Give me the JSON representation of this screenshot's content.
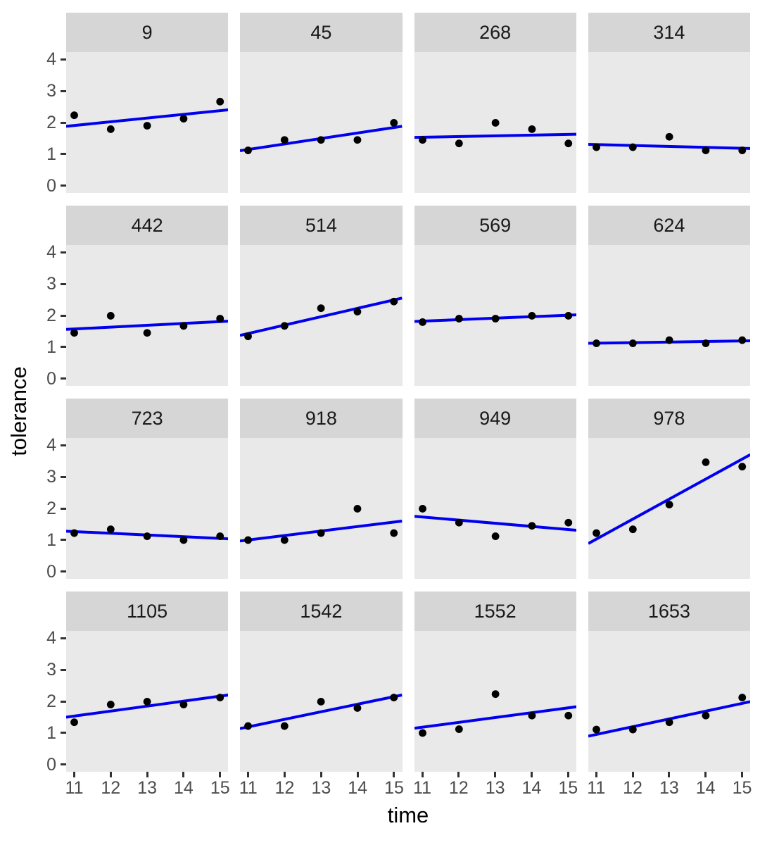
{
  "chart_data": {
    "type": "scatter",
    "title": "",
    "xlabel": "time",
    "ylabel": "tolerance",
    "facet_layout": {
      "rows": 4,
      "cols": 4
    },
    "grid": "off",
    "legend": "none",
    "x": [
      11,
      12,
      13,
      14,
      15
    ],
    "x_ticks": [
      11,
      12,
      13,
      14,
      15
    ],
    "y_ticks": [
      0,
      1,
      2,
      3,
      4
    ],
    "xlim": [
      11,
      15
    ],
    "ylim": [
      -0.225,
      4.225
    ],
    "facets": [
      {
        "id": "9",
        "points": [
          2.23,
          1.79,
          1.9,
          2.12,
          2.66
        ],
        "trend": [
          1.88,
          2.4
        ]
      },
      {
        "id": "45",
        "points": [
          1.12,
          1.45,
          1.45,
          1.45,
          1.99
        ],
        "trend": [
          1.11,
          1.88
        ]
      },
      {
        "id": "268",
        "points": [
          1.45,
          1.34,
          1.99,
          1.79,
          1.34
        ],
        "trend": [
          1.53,
          1.63
        ]
      },
      {
        "id": "314",
        "points": [
          1.22,
          1.22,
          1.55,
          1.12,
          1.12
        ],
        "trend": [
          1.31,
          1.18
        ]
      },
      {
        "id": "442",
        "points": [
          1.45,
          1.99,
          1.45,
          1.67,
          1.9
        ],
        "trend": [
          1.56,
          1.82
        ]
      },
      {
        "id": "514",
        "points": [
          1.34,
          1.67,
          2.23,
          2.12,
          2.44
        ],
        "trend": [
          1.37,
          2.55
        ]
      },
      {
        "id": "569",
        "points": [
          1.79,
          1.9,
          1.9,
          1.99,
          1.99
        ],
        "trend": [
          1.81,
          2.02
        ]
      },
      {
        "id": "624",
        "points": [
          1.12,
          1.12,
          1.22,
          1.12,
          1.22
        ],
        "trend": [
          1.12,
          1.2
        ]
      },
      {
        "id": "723",
        "points": [
          1.22,
          1.34,
          1.12,
          1.0,
          1.12
        ],
        "trend": [
          1.28,
          1.04
        ]
      },
      {
        "id": "918",
        "points": [
          1.0,
          1.0,
          1.22,
          1.99,
          1.22
        ],
        "trend": [
          0.97,
          1.6
        ]
      },
      {
        "id": "949",
        "points": [
          1.99,
          1.55,
          1.12,
          1.45,
          1.55
        ],
        "trend": [
          1.75,
          1.31
        ]
      },
      {
        "id": "978",
        "points": [
          1.22,
          1.34,
          2.12,
          3.46,
          3.32
        ],
        "trend": [
          0.89,
          3.7
        ]
      },
      {
        "id": "1105",
        "points": [
          1.34,
          1.9,
          1.99,
          1.9,
          2.12
        ],
        "trend": [
          1.5,
          2.2
        ]
      },
      {
        "id": "1542",
        "points": [
          1.22,
          1.22,
          1.99,
          1.79,
          2.12
        ],
        "trend": [
          1.14,
          2.2
        ]
      },
      {
        "id": "1552",
        "points": [
          1.0,
          1.12,
          2.23,
          1.55,
          1.55
        ],
        "trend": [
          1.15,
          1.83
        ]
      },
      {
        "id": "1653",
        "points": [
          1.11,
          1.11,
          1.34,
          1.55,
          2.12
        ],
        "trend": [
          0.9,
          1.99
        ]
      }
    ],
    "colors": {
      "point": "#000000",
      "trend": "#0000EE",
      "panel_bg": "#E9E9E9",
      "strip_bg": "#D6D6D6",
      "axis_text": "#4d4d4d",
      "strip_text": "#1a1a1a",
      "tick_mark": "#333333",
      "background": "#ffffff"
    }
  }
}
